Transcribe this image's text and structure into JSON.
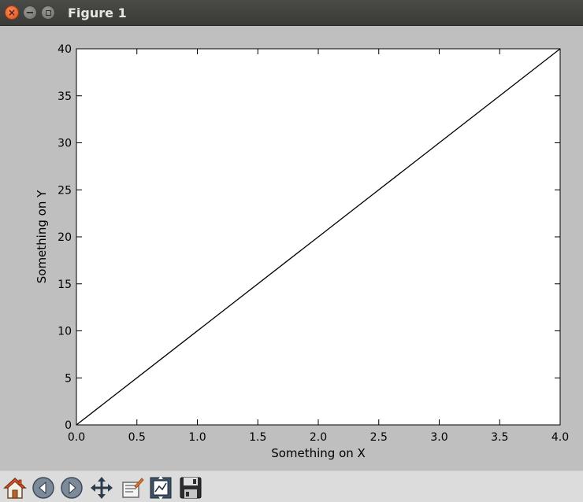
{
  "window": {
    "title": "Figure 1",
    "controls": [
      "close-icon",
      "minimize-icon",
      "maximize-icon"
    ]
  },
  "toolbar": {
    "tools": [
      {
        "name": "home",
        "icon": "home-icon"
      },
      {
        "name": "back",
        "icon": "back-arrow-icon"
      },
      {
        "name": "forward",
        "icon": "forward-arrow-icon"
      },
      {
        "name": "pan",
        "icon": "move-arrows-icon"
      },
      {
        "name": "zoom",
        "icon": "zoom-rect-icon"
      },
      {
        "name": "subplots",
        "icon": "configure-subplots-icon"
      },
      {
        "name": "save",
        "icon": "floppy-disk-icon"
      }
    ]
  },
  "chart_data": {
    "type": "line",
    "title": "",
    "xlabel": "Something on X",
    "ylabel": "Something on Y",
    "xlim": [
      0,
      4
    ],
    "ylim": [
      0,
      40
    ],
    "xticks": [
      "0.0",
      "0.5",
      "1.0",
      "1.5",
      "2.0",
      "2.5",
      "3.0",
      "3.5",
      "4.0"
    ],
    "yticks": [
      "0",
      "5",
      "10",
      "15",
      "20",
      "25",
      "30",
      "35",
      "40"
    ],
    "grid": false,
    "legend": "none",
    "series": [
      {
        "x": [
          0,
          4
        ],
        "y": [
          0,
          40
        ],
        "color": "#000000"
      }
    ]
  }
}
